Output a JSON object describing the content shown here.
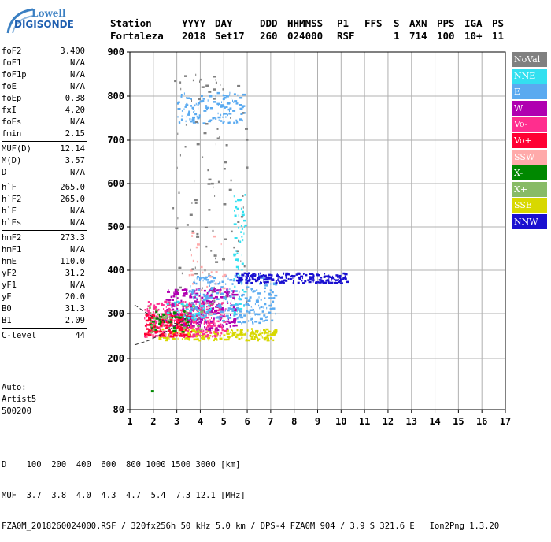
{
  "brand": {
    "line1": "Lowell",
    "line2": "DIGISONDE"
  },
  "header": {
    "row1": [
      "Station",
      "YYYY",
      "DAY",
      "DDD",
      "HHMMSS",
      "P1",
      "FFS",
      "S",
      "AXN",
      "PPS",
      "IGA",
      "PS"
    ],
    "row2": [
      "Fortaleza",
      "2018",
      "Set17",
      "260",
      "024000",
      "RSF",
      "1",
      "714",
      "100",
      "10+",
      "11"
    ]
  },
  "params": {
    "g1": [
      {
        "name": "foF2",
        "value": "3.400"
      },
      {
        "name": "foF1",
        "value": "N/A"
      },
      {
        "name": "foF1p",
        "value": "N/A"
      },
      {
        "name": "foE",
        "value": "N/A"
      },
      {
        "name": "foEp",
        "value": "0.38"
      },
      {
        "name": "fxI",
        "value": "4.20"
      },
      {
        "name": "foEs",
        "value": "N/A"
      },
      {
        "name": "fmin",
        "value": "2.15"
      }
    ],
    "g2": [
      {
        "name": "MUF(D)",
        "value": "12.14"
      },
      {
        "name": "M(D)",
        "value": "3.57"
      },
      {
        "name": "D",
        "value": "N/A"
      }
    ],
    "g3": [
      {
        "name": "h`F",
        "value": "265.0"
      },
      {
        "name": "h`F2",
        "value": "265.0"
      },
      {
        "name": "h`E",
        "value": "N/A"
      },
      {
        "name": "h`Es",
        "value": "N/A"
      }
    ],
    "g4": [
      {
        "name": "hmF2",
        "value": "273.3"
      },
      {
        "name": "hmF1",
        "value": "N/A"
      },
      {
        "name": "hmE",
        "value": "110.0"
      },
      {
        "name": "yF2",
        "value": "31.2"
      },
      {
        "name": "yF1",
        "value": "N/A"
      },
      {
        "name": "yE",
        "value": "20.0"
      },
      {
        "name": "B0",
        "value": "31.3"
      },
      {
        "name": "B1",
        "value": "2.09"
      }
    ],
    "g5": [
      {
        "name": "C-level",
        "value": "44"
      }
    ]
  },
  "auto": {
    "line1": "Auto:",
    "line2": "Artist5",
    "line3": "500200"
  },
  "legend": [
    {
      "label": "NoVal",
      "color": "#808080"
    },
    {
      "label": "NNE",
      "color": "#33e0f0"
    },
    {
      "label": "E",
      "color": "#5aaaf0"
    },
    {
      "label": "W",
      "color": "#b000b0"
    },
    {
      "label": "Vo-",
      "color": "#ff2e8e"
    },
    {
      "label": "Vo+",
      "color": "#ff0033"
    },
    {
      "label": "SSW",
      "color": "#ffaaaa"
    },
    {
      "label": "X-",
      "color": "#008800"
    },
    {
      "label": "X+",
      "color": "#88bb66"
    },
    {
      "label": "SSE",
      "color": "#d8d800"
    },
    {
      "label": "NNW",
      "color": "#1a10d0"
    }
  ],
  "bottom": {
    "d_label": "D",
    "d_values": [
      "100",
      "200",
      "400",
      "600",
      "800",
      "1000",
      "1500",
      "3000",
      "[km]"
    ],
    "muf_label": "MUF",
    "muf_values": [
      "3.7",
      "3.8",
      "4.0",
      "4.3",
      "4.7",
      "5.4",
      "7.3",
      "12.1",
      "[MHz]"
    ],
    "footer": "FZA0M_2018260024000.RSF / 320fx256h 50 kHz 5.0 km / DPS-4 FZA0M 904 / 3.9 S 321.6 E   Ion2Png 1.3.20"
  },
  "chart_data": {
    "type": "scatter",
    "xlim": [
      1,
      17
    ],
    "ylim": [
      80,
      900
    ],
    "xticks": [
      1,
      2,
      3,
      4,
      5,
      6,
      7,
      8,
      9,
      10,
      11,
      12,
      13,
      14,
      15,
      16,
      17
    ],
    "yticks": [
      80,
      200,
      300,
      400,
      500,
      600,
      700,
      800,
      900
    ],
    "grid": true,
    "legend_position": "right",
    "clusters": [
      {
        "series": "SSE",
        "x_range": [
          2.2,
          7.2
        ],
        "y_range": [
          242,
          268
        ],
        "count": 220
      },
      {
        "series": "Vo-",
        "x_range": [
          1.6,
          5.0
        ],
        "y_range": [
          250,
          330
        ],
        "count": 380
      },
      {
        "series": "Vo+",
        "x_range": [
          1.6,
          3.6
        ],
        "y_range": [
          250,
          300
        ],
        "count": 170
      },
      {
        "series": "W",
        "x_range": [
          2.5,
          5.5
        ],
        "y_range": [
          265,
          360
        ],
        "count": 240
      },
      {
        "series": "E",
        "x_range": [
          3.5,
          7.2
        ],
        "y_range": [
          280,
          390
        ],
        "count": 260
      },
      {
        "series": "E",
        "x_range": [
          3.0,
          5.8
        ],
        "y_range": [
          740,
          810
        ],
        "count": 130
      },
      {
        "series": "NNE",
        "x_range": [
          5.4,
          5.9
        ],
        "y_range": [
          300,
          580
        ],
        "count": 60
      },
      {
        "series": "NNE",
        "x_range": [
          2.5,
          4.5
        ],
        "y_range": [
          290,
          330
        ],
        "count": 50
      },
      {
        "series": "NNW",
        "x_range": [
          5.5,
          10.2
        ],
        "y_range": [
          372,
          396
        ],
        "count": 200
      },
      {
        "series": "X-",
        "x_range": [
          1.8,
          3.5
        ],
        "y_range": [
          260,
          310
        ],
        "count": 50
      },
      {
        "series": "X+",
        "x_range": [
          1.8,
          4.0
        ],
        "y_range": [
          260,
          320
        ],
        "count": 40
      },
      {
        "series": "SSW",
        "x_range": [
          3.5,
          5.0
        ],
        "y_range": [
          300,
          500
        ],
        "count": 30
      },
      {
        "series": "NoVal",
        "x_range": [
          2.8,
          6.0
        ],
        "y_range": [
          300,
          860
        ],
        "count": 110
      }
    ],
    "isolated_points": [
      {
        "series": "X-",
        "x": 1.9,
        "y": 126
      }
    ],
    "trace_upper": [
      [
        1.2,
        320
      ],
      [
        1.6,
        305
      ],
      [
        2.0,
        292
      ],
      [
        2.6,
        282
      ],
      [
        3.2,
        275
      ]
    ],
    "trace_lower": [
      [
        1.2,
        230
      ],
      [
        1.8,
        240
      ],
      [
        2.4,
        255
      ],
      [
        3.0,
        275
      ],
      [
        3.4,
        290
      ]
    ]
  }
}
